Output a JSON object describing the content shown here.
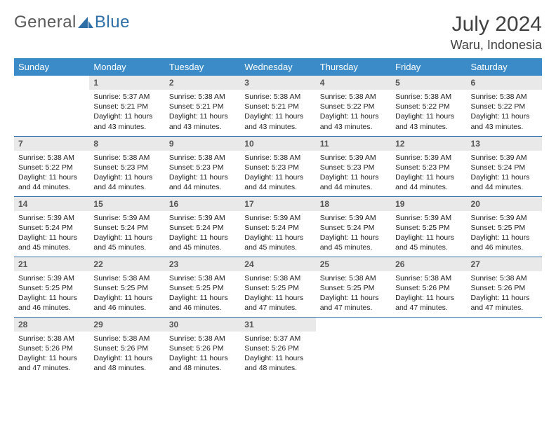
{
  "logo": {
    "text1": "General",
    "text2": "Blue"
  },
  "title": "July 2024",
  "location": "Waru, Indonesia",
  "colors": {
    "header_bg": "#3b8bc8",
    "header_fg": "#ffffff",
    "daynum_bg": "#e9e9e9",
    "daynum_fg": "#555555",
    "rule": "#2f6fa7",
    "logo_gray": "#5a5a5a",
    "logo_blue": "#2f6fa7",
    "title_color": "#404040"
  },
  "weekdays": [
    "Sunday",
    "Monday",
    "Tuesday",
    "Wednesday",
    "Thursday",
    "Friday",
    "Saturday"
  ],
  "weeks": [
    [
      null,
      {
        "n": "1",
        "sr": "Sunrise: 5:37 AM",
        "ss": "Sunset: 5:21 PM",
        "dl": "Daylight: 11 hours and 43 minutes."
      },
      {
        "n": "2",
        "sr": "Sunrise: 5:38 AM",
        "ss": "Sunset: 5:21 PM",
        "dl": "Daylight: 11 hours and 43 minutes."
      },
      {
        "n": "3",
        "sr": "Sunrise: 5:38 AM",
        "ss": "Sunset: 5:21 PM",
        "dl": "Daylight: 11 hours and 43 minutes."
      },
      {
        "n": "4",
        "sr": "Sunrise: 5:38 AM",
        "ss": "Sunset: 5:22 PM",
        "dl": "Daylight: 11 hours and 43 minutes."
      },
      {
        "n": "5",
        "sr": "Sunrise: 5:38 AM",
        "ss": "Sunset: 5:22 PM",
        "dl": "Daylight: 11 hours and 43 minutes."
      },
      {
        "n": "6",
        "sr": "Sunrise: 5:38 AM",
        "ss": "Sunset: 5:22 PM",
        "dl": "Daylight: 11 hours and 43 minutes."
      }
    ],
    [
      {
        "n": "7",
        "sr": "Sunrise: 5:38 AM",
        "ss": "Sunset: 5:22 PM",
        "dl": "Daylight: 11 hours and 44 minutes."
      },
      {
        "n": "8",
        "sr": "Sunrise: 5:38 AM",
        "ss": "Sunset: 5:23 PM",
        "dl": "Daylight: 11 hours and 44 minutes."
      },
      {
        "n": "9",
        "sr": "Sunrise: 5:38 AM",
        "ss": "Sunset: 5:23 PM",
        "dl": "Daylight: 11 hours and 44 minutes."
      },
      {
        "n": "10",
        "sr": "Sunrise: 5:38 AM",
        "ss": "Sunset: 5:23 PM",
        "dl": "Daylight: 11 hours and 44 minutes."
      },
      {
        "n": "11",
        "sr": "Sunrise: 5:39 AM",
        "ss": "Sunset: 5:23 PM",
        "dl": "Daylight: 11 hours and 44 minutes."
      },
      {
        "n": "12",
        "sr": "Sunrise: 5:39 AM",
        "ss": "Sunset: 5:23 PM",
        "dl": "Daylight: 11 hours and 44 minutes."
      },
      {
        "n": "13",
        "sr": "Sunrise: 5:39 AM",
        "ss": "Sunset: 5:24 PM",
        "dl": "Daylight: 11 hours and 44 minutes."
      }
    ],
    [
      {
        "n": "14",
        "sr": "Sunrise: 5:39 AM",
        "ss": "Sunset: 5:24 PM",
        "dl": "Daylight: 11 hours and 45 minutes."
      },
      {
        "n": "15",
        "sr": "Sunrise: 5:39 AM",
        "ss": "Sunset: 5:24 PM",
        "dl": "Daylight: 11 hours and 45 minutes."
      },
      {
        "n": "16",
        "sr": "Sunrise: 5:39 AM",
        "ss": "Sunset: 5:24 PM",
        "dl": "Daylight: 11 hours and 45 minutes."
      },
      {
        "n": "17",
        "sr": "Sunrise: 5:39 AM",
        "ss": "Sunset: 5:24 PM",
        "dl": "Daylight: 11 hours and 45 minutes."
      },
      {
        "n": "18",
        "sr": "Sunrise: 5:39 AM",
        "ss": "Sunset: 5:24 PM",
        "dl": "Daylight: 11 hours and 45 minutes."
      },
      {
        "n": "19",
        "sr": "Sunrise: 5:39 AM",
        "ss": "Sunset: 5:25 PM",
        "dl": "Daylight: 11 hours and 45 minutes."
      },
      {
        "n": "20",
        "sr": "Sunrise: 5:39 AM",
        "ss": "Sunset: 5:25 PM",
        "dl": "Daylight: 11 hours and 46 minutes."
      }
    ],
    [
      {
        "n": "21",
        "sr": "Sunrise: 5:39 AM",
        "ss": "Sunset: 5:25 PM",
        "dl": "Daylight: 11 hours and 46 minutes."
      },
      {
        "n": "22",
        "sr": "Sunrise: 5:38 AM",
        "ss": "Sunset: 5:25 PM",
        "dl": "Daylight: 11 hours and 46 minutes."
      },
      {
        "n": "23",
        "sr": "Sunrise: 5:38 AM",
        "ss": "Sunset: 5:25 PM",
        "dl": "Daylight: 11 hours and 46 minutes."
      },
      {
        "n": "24",
        "sr": "Sunrise: 5:38 AM",
        "ss": "Sunset: 5:25 PM",
        "dl": "Daylight: 11 hours and 47 minutes."
      },
      {
        "n": "25",
        "sr": "Sunrise: 5:38 AM",
        "ss": "Sunset: 5:25 PM",
        "dl": "Daylight: 11 hours and 47 minutes."
      },
      {
        "n": "26",
        "sr": "Sunrise: 5:38 AM",
        "ss": "Sunset: 5:26 PM",
        "dl": "Daylight: 11 hours and 47 minutes."
      },
      {
        "n": "27",
        "sr": "Sunrise: 5:38 AM",
        "ss": "Sunset: 5:26 PM",
        "dl": "Daylight: 11 hours and 47 minutes."
      }
    ],
    [
      {
        "n": "28",
        "sr": "Sunrise: 5:38 AM",
        "ss": "Sunset: 5:26 PM",
        "dl": "Daylight: 11 hours and 47 minutes."
      },
      {
        "n": "29",
        "sr": "Sunrise: 5:38 AM",
        "ss": "Sunset: 5:26 PM",
        "dl": "Daylight: 11 hours and 48 minutes."
      },
      {
        "n": "30",
        "sr": "Sunrise: 5:38 AM",
        "ss": "Sunset: 5:26 PM",
        "dl": "Daylight: 11 hours and 48 minutes."
      },
      {
        "n": "31",
        "sr": "Sunrise: 5:37 AM",
        "ss": "Sunset: 5:26 PM",
        "dl": "Daylight: 11 hours and 48 minutes."
      },
      null,
      null,
      null
    ]
  ]
}
